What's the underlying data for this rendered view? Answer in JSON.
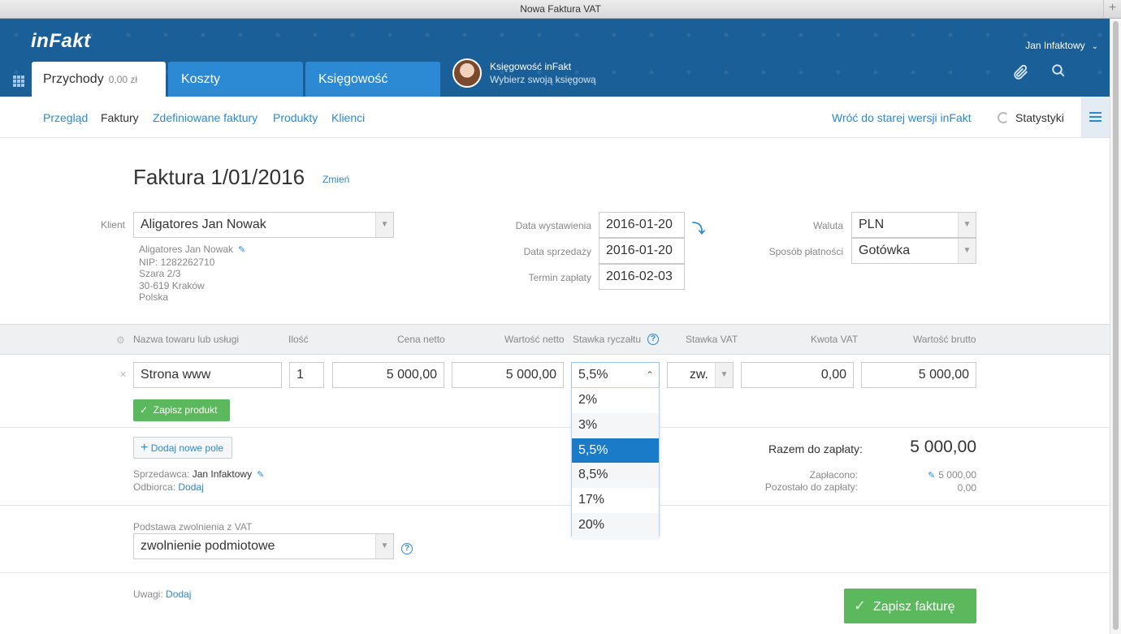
{
  "window": {
    "title": "Nowa Faktura VAT"
  },
  "header": {
    "logo": "inFakt",
    "tabs": [
      {
        "label": "Przychody",
        "amount": "0,00 zł"
      },
      {
        "label": "Koszty"
      },
      {
        "label": "Księgowość"
      }
    ],
    "advisor": {
      "title": "Księgowość inFakt",
      "subtitle": "Wybierz swoją księgową"
    },
    "user": "Jan Infaktowy"
  },
  "subnav": {
    "items": [
      "Przegląd",
      "Faktury",
      "Zdefiniowane faktury",
      "Produkty",
      "Klienci"
    ],
    "old_version": "Wróć do starej wersji inFakt",
    "stats": "Statystyki"
  },
  "invoice": {
    "title": "Faktura 1/01/2016",
    "change": "Zmień",
    "client_label": "Klient",
    "client_value": "Aligatores Jan Nowak",
    "client_info": [
      "Aligatores Jan Nowak",
      "NIP: 1282262710",
      "Szara 2/3",
      "30-619 Kraków",
      "Polska"
    ],
    "dates": {
      "issue_label": "Data wystawienia",
      "issue_value": "2016-01-20",
      "sale_label": "Data sprzedaży",
      "sale_value": "2016-01-20",
      "due_label": "Termin zapłaty",
      "due_value": "2016-02-03"
    },
    "currency_label": "Waluta",
    "currency_value": "PLN",
    "payment_label": "Sposób płatności",
    "payment_value": "Gotówka"
  },
  "table": {
    "headers": {
      "name": "Nazwa towaru lub usługi",
      "qty": "Ilość",
      "net_price": "Cena netto",
      "net_value": "Wartość netto",
      "flat_rate": "Stawka ryczałtu",
      "vat_rate": "Stawka VAT",
      "vat_amount": "Kwota VAT",
      "gross": "Wartość brutto"
    },
    "row": {
      "name": "Strona www",
      "qty": "1",
      "net_price": "5 000,00",
      "net_value": "5 000,00",
      "flat_rate": "5,5%",
      "vat_rate": "zw.",
      "vat_amount": "0,00",
      "gross": "5 000,00"
    },
    "save_product": "Zapisz produkt",
    "flat_rate_options": [
      "2%",
      "3%",
      "5,5%",
      "8,5%",
      "17%",
      "20%"
    ]
  },
  "footer": {
    "add_field": "Dodaj nowe pole",
    "seller_label": "Sprzedawca:",
    "seller_value": "Jan Infaktowy",
    "buyer_label": "Odbiorca:",
    "buyer_link": "Dodaj",
    "total_label": "Razem do zapłaty:",
    "total_value": "5 000,00",
    "paid_label": "Zapłacono:",
    "paid_value": "5 000,00",
    "remaining_label": "Pozostało do zapłaty:",
    "remaining_value": "0,00",
    "vat_exempt_label": "Podstawa zwolnienia z VAT",
    "vat_exempt_value": "zwolnienie podmiotowe",
    "notes_label": "Uwagi:",
    "notes_link": "Dodaj",
    "save_invoice": "Zapisz fakturę"
  },
  "colors": {
    "brand": "#1a5f98",
    "accent": "#2b8ad3",
    "success": "#5cb85c"
  }
}
